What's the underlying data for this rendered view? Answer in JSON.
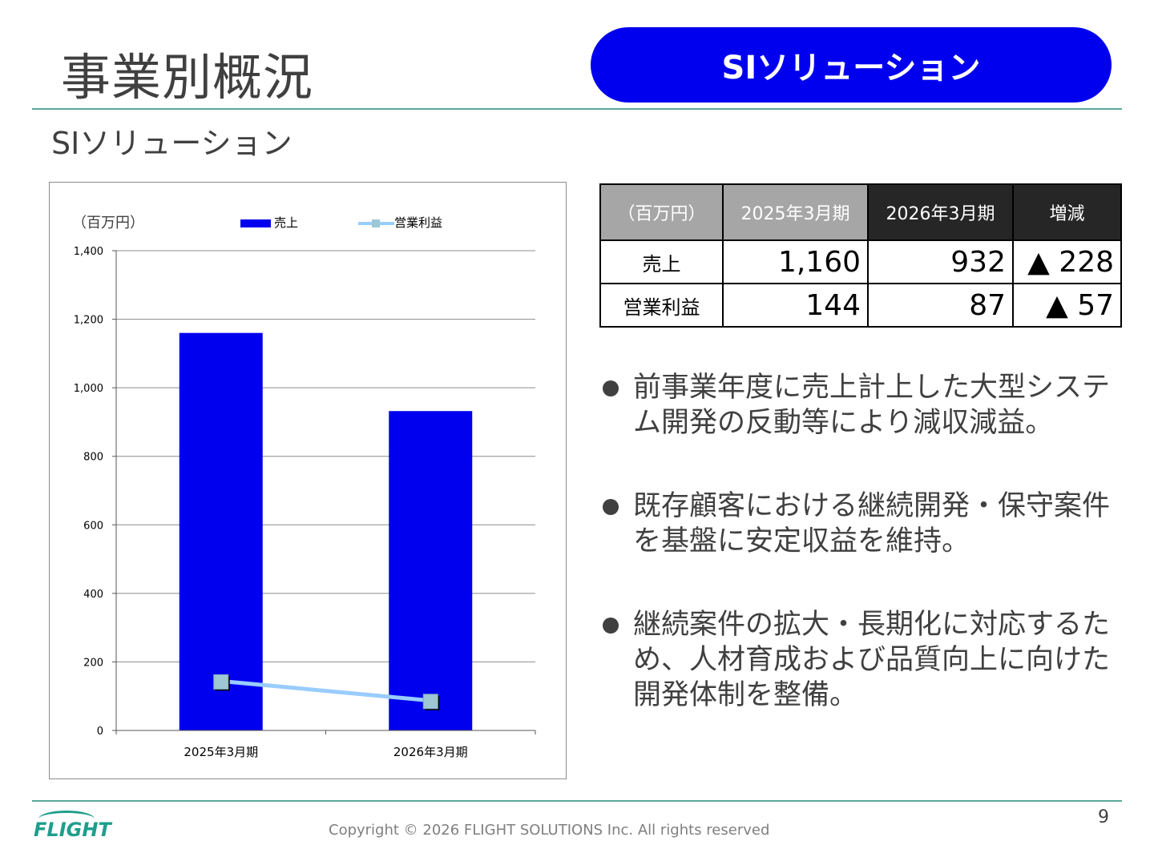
{
  "header": {
    "title": "事業別概況",
    "badge": "SIソリューション"
  },
  "subtitle": "SIソリューション",
  "chart_data": {
    "type": "bar",
    "unit_label": "（百万円）",
    "categories": [
      "2025年3月期",
      "2026年3月期"
    ],
    "series": [
      {
        "name": "売上",
        "type": "bar",
        "values": [
          1160,
          932
        ],
        "color": "#0000ee"
      },
      {
        "name": "営業利益",
        "type": "line",
        "values": [
          144,
          87
        ],
        "color": "#99ccff"
      }
    ],
    "ylim": [
      0,
      1400
    ],
    "yticks": [
      0,
      200,
      400,
      600,
      800,
      1000,
      1200,
      1400
    ],
    "ytick_labels": [
      "0",
      "200",
      "400",
      "600",
      "800",
      "1,000",
      "1,200",
      "1,400"
    ],
    "grid": true,
    "legend": "top"
  },
  "table": {
    "headers": [
      "（百万円）",
      "2025年3月期",
      "2026年3月期",
      "増減"
    ],
    "rows": [
      {
        "label": "売上",
        "prev": "1,160",
        "cur": "932",
        "diff": "▲ 228"
      },
      {
        "label": "営業利益",
        "prev": "144",
        "cur": "87",
        "diff": "▲ 57"
      }
    ]
  },
  "bullets": [
    "前事業年度に売上計上した大型システム開発の反動等により減収減益。",
    "既存顧客における継続開発・保守案件を基盤に安定収益を維持。",
    "継続案件の拡大・長期化に対応するため、人材育成および品質向上に向けた開発体制を整備。"
  ],
  "footer": {
    "logo": "FLIGHT",
    "copyright": "Copyright ©  2026 FLIGHT SOLUTIONS Inc. All rights reserved",
    "page": "9"
  }
}
